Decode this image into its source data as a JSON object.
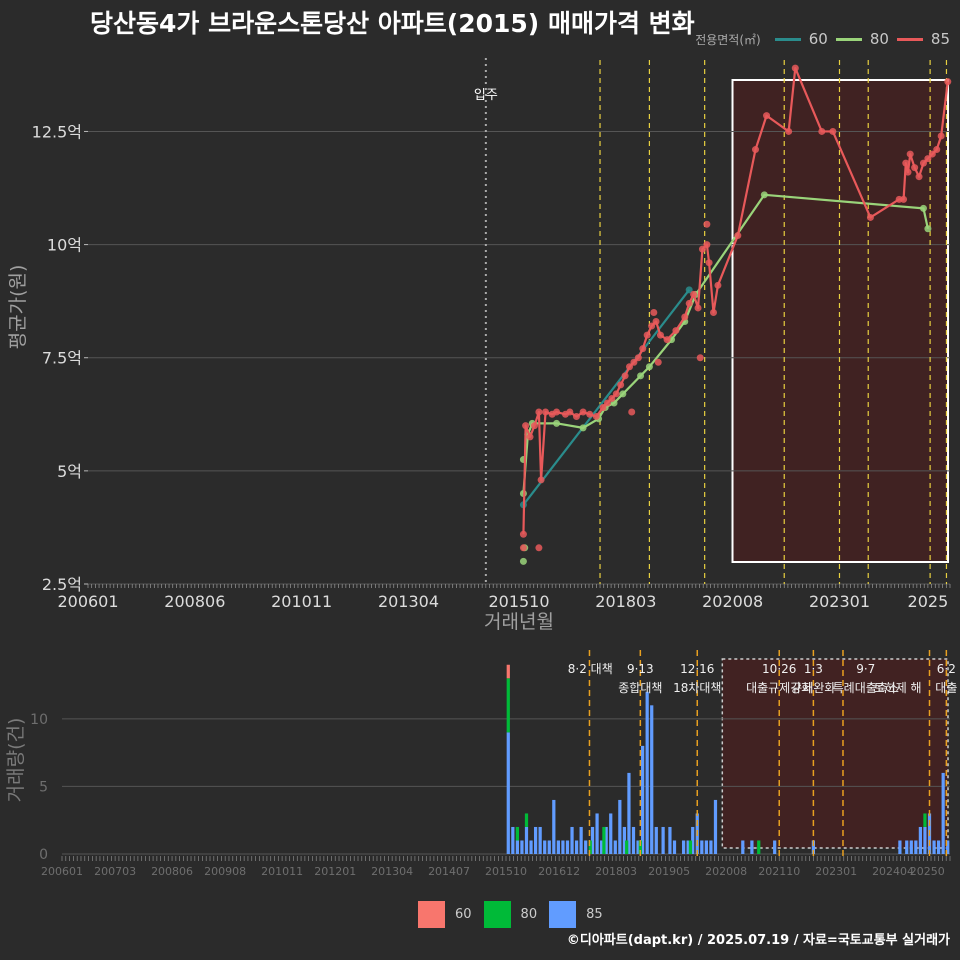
{
  "title": "당산동4가 브라운스톤당산 아파트(2015) 매매가격 변화",
  "footer": "©디아파트(dapt.kr) / 2025.07.19 / 자료=국토교통부 실거래가",
  "colors": {
    "s60": "#2a8c8c",
    "s80": "#9ad47a",
    "s85": "#e8595a",
    "b60": "#f8766d",
    "b80": "#00ba38",
    "b85": "#619cff"
  },
  "chart_data": [
    {
      "type": "line",
      "title": "당산동4가 브라운스톤당산 아파트(2015) 매매가격 변화",
      "xlabel": "거래년월",
      "ylabel": "평균가(원)",
      "xlim": [
        2006.0,
        2025.5
      ],
      "ylim": [
        2.5,
        14.3
      ],
      "x_ticks": [
        2006.0,
        2008.417,
        2010.833,
        2013.25,
        2015.75,
        2018.167,
        2020.583,
        2023.0,
        2025.0
      ],
      "x_tick_labels": [
        "200601",
        "200806",
        "201011",
        "201304",
        "201510",
        "201803",
        "202008",
        "202301",
        "2025"
      ],
      "y_ticks": [
        2.5,
        5,
        7.5,
        10,
        12.5
      ],
      "y_tick_labels": [
        "2.5억",
        "5억",
        "7.5억",
        "10억",
        "12.5억"
      ],
      "legend_title": "전용면적(㎡)",
      "move_in": {
        "x": 2015.0,
        "label": "입주"
      },
      "policy_lines_x": [
        2017.583,
        2018.7,
        2019.95,
        2021.75,
        2023.0,
        2023.65,
        2025.05,
        2025.42
      ],
      "highlight_range": [
        2020.58,
        2025.5
      ],
      "series": [
        {
          "name": "60",
          "points": [
            [
              2015.85,
              4.25
            ],
            [
              2019.6,
              9.0
            ]
          ]
        },
        {
          "name": "80",
          "points": [
            [
              2015.85,
              4.5
            ],
            [
              2015.95,
              5.8
            ],
            [
              2016.05,
              6.05
            ],
            [
              2016.6,
              6.05
            ],
            [
              2017.2,
              5.95
            ],
            [
              2017.55,
              6.15
            ],
            [
              2017.7,
              6.4
            ],
            [
              2017.9,
              6.5
            ],
            [
              2018.1,
              6.7
            ],
            [
              2018.5,
              7.1
            ],
            [
              2018.7,
              7.3
            ],
            [
              2019.2,
              7.9
            ],
            [
              2019.5,
              8.3
            ],
            [
              2019.75,
              8.9
            ],
            [
              2021.3,
              11.1
            ],
            [
              2024.9,
              10.8
            ],
            [
              2025.0,
              10.35
            ]
          ],
          "extra_points": [
            [
              2015.85,
              5.25
            ],
            [
              2015.85,
              3.0
            ],
            [
              2015.88,
              3.3
            ]
          ]
        },
        {
          "name": "85",
          "points": [
            [
              2015.85,
              3.6
            ],
            [
              2015.9,
              6.0
            ],
            [
              2016.0,
              5.75
            ],
            [
              2016.1,
              6.0
            ],
            [
              2016.2,
              6.3
            ],
            [
              2016.25,
              4.8
            ],
            [
              2016.35,
              6.3
            ],
            [
              2016.5,
              6.25
            ],
            [
              2016.6,
              6.3
            ],
            [
              2016.8,
              6.25
            ],
            [
              2016.9,
              6.3
            ],
            [
              2017.05,
              6.2
            ],
            [
              2017.2,
              6.3
            ],
            [
              2017.35,
              6.25
            ],
            [
              2017.5,
              6.2
            ],
            [
              2017.65,
              6.4
            ],
            [
              2017.75,
              6.5
            ],
            [
              2017.85,
              6.6
            ],
            [
              2017.95,
              6.7
            ],
            [
              2018.05,
              6.9
            ],
            [
              2018.15,
              7.1
            ],
            [
              2018.25,
              7.3
            ],
            [
              2018.35,
              7.4
            ],
            [
              2018.45,
              7.5
            ],
            [
              2018.55,
              7.7
            ],
            [
              2018.65,
              8.0
            ],
            [
              2018.75,
              8.2
            ],
            [
              2018.85,
              8.3
            ],
            [
              2018.95,
              8.0
            ],
            [
              2019.1,
              7.9
            ],
            [
              2019.3,
              8.1
            ],
            [
              2019.5,
              8.4
            ],
            [
              2019.6,
              8.7
            ],
            [
              2019.7,
              8.9
            ],
            [
              2019.8,
              8.6
            ],
            [
              2019.9,
              9.9
            ],
            [
              2020.0,
              10.0
            ],
            [
              2020.05,
              9.6
            ],
            [
              2020.15,
              8.5
            ],
            [
              2020.25,
              9.1
            ],
            [
              2020.7,
              10.2
            ],
            [
              2021.1,
              12.1
            ],
            [
              2021.35,
              12.85
            ],
            [
              2021.85,
              12.5
            ],
            [
              2022.0,
              13.9
            ],
            [
              2022.6,
              12.5
            ],
            [
              2022.85,
              12.5
            ],
            [
              2023.7,
              10.6
            ],
            [
              2024.35,
              11.0
            ],
            [
              2024.45,
              11.0
            ],
            [
              2024.5,
              11.8
            ],
            [
              2024.55,
              11.6
            ],
            [
              2024.6,
              12.0
            ],
            [
              2024.7,
              11.7
            ],
            [
              2024.8,
              11.5
            ],
            [
              2024.9,
              11.8
            ],
            [
              2025.0,
              11.9
            ],
            [
              2025.1,
              12.0
            ],
            [
              2025.2,
              12.1
            ],
            [
              2025.3,
              12.4
            ],
            [
              2025.45,
              13.6
            ]
          ],
          "extra_points": [
            [
              2015.85,
              3.3
            ],
            [
              2016.2,
              3.3
            ],
            [
              2018.8,
              8.5
            ],
            [
              2018.9,
              7.4
            ],
            [
              2019.85,
              7.5
            ],
            [
              2020.0,
              10.45
            ],
            [
              2018.3,
              6.3
            ]
          ]
        }
      ]
    },
    {
      "type": "bar",
      "xlabel": "",
      "ylabel": "거래량(건)",
      "xlim": [
        2006.0,
        2025.5
      ],
      "ylim": [
        0,
        14.5
      ],
      "y_ticks": [
        0,
        5,
        10
      ],
      "y_tick_labels": [
        "0",
        "5",
        "10"
      ],
      "x_ticks": [
        2006.0,
        2007.167,
        2008.417,
        2009.583,
        2010.833,
        2012.0,
        2013.25,
        2014.5,
        2015.75,
        2016.917,
        2018.167,
        2019.333,
        2020.583,
        2021.75,
        2023.0,
        2024.25,
        2025.0
      ],
      "x_tick_labels": [
        "200601",
        "200703",
        "200806",
        "200908",
        "201011",
        "201201",
        "201304",
        "201407",
        "201510",
        "201612",
        "201803",
        "201905",
        "202008",
        "202110",
        "202301",
        "202404",
        "20250"
      ],
      "policy_lines_x": [
        2017.583,
        2018.7,
        2019.95,
        2021.75,
        2022.5,
        2023.15,
        2025.05,
        2025.42
      ],
      "highlight_range": [
        2020.5,
        2025.5
      ],
      "annotations": [
        {
          "x": 2017.6,
          "line1": "8·2 대책",
          "line2": ""
        },
        {
          "x": 2018.7,
          "line1": "9·13",
          "line2": "종합대책"
        },
        {
          "x": 2019.95,
          "line1": "12·16",
          "line2": "18차대책"
        },
        {
          "x": 2021.75,
          "line1": "10·26",
          "line2": "대출규제강화"
        },
        {
          "x": 2022.5,
          "line1": "1·3",
          "line2": "규제완화"
        },
        {
          "x": 2023.65,
          "line1": "9·7",
          "line2": "특례대출축소"
        },
        {
          "x": 2024.35,
          "line1": "",
          "line2": "토허제 해"
        },
        {
          "x": 2025.42,
          "line1": "6·2",
          "line2": "대출"
        }
      ],
      "series": [
        {
          "name": "60",
          "points": [
            [
              2015.8,
              1
            ]
          ]
        },
        {
          "name": "80",
          "points": [
            [
              2015.8,
              4
            ],
            [
              2016.0,
              1
            ],
            [
              2016.2,
              1
            ],
            [
              2017.6,
              1
            ],
            [
              2017.9,
              2
            ],
            [
              2018.4,
              1
            ],
            [
              2018.7,
              1
            ],
            [
              2019.8,
              1
            ],
            [
              2021.3,
              1
            ],
            [
              2024.95,
              1
            ]
          ]
        },
        {
          "name": "85",
          "points": [
            [
              2015.8,
              9
            ],
            [
              2015.9,
              2
            ],
            [
              2016.0,
              1
            ],
            [
              2016.1,
              1
            ],
            [
              2016.2,
              2
            ],
            [
              2016.3,
              1
            ],
            [
              2016.4,
              2
            ],
            [
              2016.5,
              2
            ],
            [
              2016.6,
              1
            ],
            [
              2016.7,
              1
            ],
            [
              2016.8,
              4
            ],
            [
              2016.9,
              1
            ],
            [
              2017.0,
              1
            ],
            [
              2017.1,
              1
            ],
            [
              2017.2,
              2
            ],
            [
              2017.3,
              1
            ],
            [
              2017.4,
              2
            ],
            [
              2017.5,
              1
            ],
            [
              2017.65,
              2
            ],
            [
              2017.75,
              3
            ],
            [
              2017.85,
              1
            ],
            [
              2017.95,
              2
            ],
            [
              2018.05,
              3
            ],
            [
              2018.15,
              1
            ],
            [
              2018.25,
              4
            ],
            [
              2018.35,
              2
            ],
            [
              2018.45,
              6
            ],
            [
              2018.55,
              2
            ],
            [
              2018.65,
              1
            ],
            [
              2018.75,
              8
            ],
            [
              2018.85,
              12
            ],
            [
              2018.95,
              11
            ],
            [
              2019.05,
              2
            ],
            [
              2019.2,
              2
            ],
            [
              2019.35,
              2
            ],
            [
              2019.45,
              1
            ],
            [
              2019.65,
              1
            ],
            [
              2019.75,
              1
            ],
            [
              2019.85,
              2
            ],
            [
              2019.95,
              3
            ],
            [
              2020.05,
              1
            ],
            [
              2020.15,
              1
            ],
            [
              2020.25,
              1
            ],
            [
              2020.35,
              4
            ],
            [
              2020.95,
              1
            ],
            [
              2021.15,
              1
            ],
            [
              2021.65,
              1
            ],
            [
              2022.5,
              1
            ],
            [
              2024.4,
              1
            ],
            [
              2024.55,
              1
            ],
            [
              2024.65,
              1
            ],
            [
              2024.75,
              1
            ],
            [
              2024.85,
              2
            ],
            [
              2024.95,
              2
            ],
            [
              2025.05,
              3
            ],
            [
              2025.15,
              1
            ],
            [
              2025.25,
              1
            ],
            [
              2025.35,
              6
            ],
            [
              2025.45,
              1
            ]
          ]
        }
      ]
    }
  ]
}
